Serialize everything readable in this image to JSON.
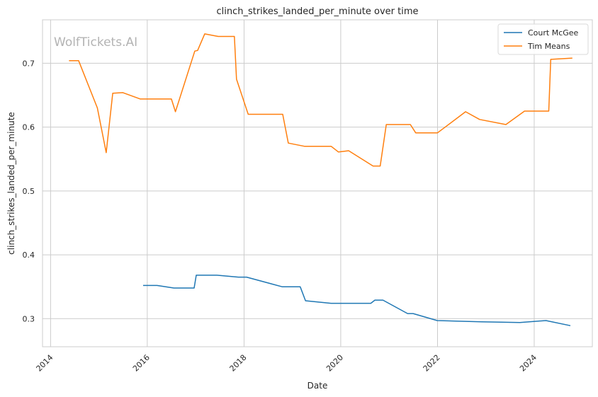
{
  "chart_data": {
    "type": "line",
    "title": "clinch_strikes_landed_per_minute over time",
    "xlabel": "Date",
    "ylabel": "clinch_strikes_landed_per_minute",
    "watermark": "WolfTickets.AI",
    "grid": true,
    "legend_position": "top-right",
    "x_ticks": [
      "2014",
      "2016",
      "2018",
      "2020",
      "2022",
      "2024"
    ],
    "y_ticks": [
      "0.3",
      "0.4",
      "0.5",
      "0.6",
      "0.7"
    ],
    "xlim": [
      "2013-11-01",
      "2025-03-15"
    ],
    "ylim": [
      0.256,
      0.768
    ],
    "series": [
      {
        "name": "Court McGee",
        "color": "#1f77b4",
        "points": [
          [
            "2015-12-01",
            0.352
          ],
          [
            "2016-03-15",
            0.352
          ],
          [
            "2016-07-20",
            0.348
          ],
          [
            "2016-12-20",
            0.348
          ],
          [
            "2017-01-05",
            0.368
          ],
          [
            "2017-06-10",
            0.368
          ],
          [
            "2017-11-20",
            0.365
          ],
          [
            "2018-01-20",
            0.365
          ],
          [
            "2018-10-15",
            0.35
          ],
          [
            "2019-03-01",
            0.35
          ],
          [
            "2019-04-10",
            0.328
          ],
          [
            "2019-10-20",
            0.324
          ],
          [
            "2020-05-01",
            0.324
          ],
          [
            "2020-08-15",
            0.324
          ],
          [
            "2020-09-15",
            0.329
          ],
          [
            "2020-11-15",
            0.329
          ],
          [
            "2021-05-20",
            0.308
          ],
          [
            "2021-07-01",
            0.308
          ],
          [
            "2021-12-30",
            0.297
          ],
          [
            "2022-12-01",
            0.295
          ],
          [
            "2023-09-15",
            0.294
          ],
          [
            "2024-03-30",
            0.297
          ],
          [
            "2024-09-30",
            0.289
          ]
        ]
      },
      {
        "name": "Tim Means",
        "color": "#ff7f0e",
        "points": [
          [
            "2014-05-20",
            0.704
          ],
          [
            "2014-08-01",
            0.704
          ],
          [
            "2014-12-20",
            0.63
          ],
          [
            "2015-02-25",
            0.56
          ],
          [
            "2015-04-15",
            0.653
          ],
          [
            "2015-07-01",
            0.654
          ],
          [
            "2015-11-10",
            0.644
          ],
          [
            "2016-07-01",
            0.644
          ],
          [
            "2016-08-01",
            0.624
          ],
          [
            "2016-12-25",
            0.719
          ],
          [
            "2017-01-15",
            0.72
          ],
          [
            "2017-03-10",
            0.746
          ],
          [
            "2017-06-20",
            0.742
          ],
          [
            "2017-10-20",
            0.742
          ],
          [
            "2017-11-05",
            0.675
          ],
          [
            "2018-02-01",
            0.62
          ],
          [
            "2018-10-20",
            0.62
          ],
          [
            "2018-12-01",
            0.575
          ],
          [
            "2019-04-01",
            0.57
          ],
          [
            "2019-10-20",
            0.57
          ],
          [
            "2019-12-15",
            0.561
          ],
          [
            "2020-03-01",
            0.563
          ],
          [
            "2020-09-01",
            0.539
          ],
          [
            "2020-10-25",
            0.539
          ],
          [
            "2020-12-10",
            0.604
          ],
          [
            "2021-06-10",
            0.604
          ],
          [
            "2021-07-20",
            0.591
          ],
          [
            "2022-01-01",
            0.591
          ],
          [
            "2022-08-01",
            0.624
          ],
          [
            "2022-11-15",
            0.612
          ],
          [
            "2023-06-01",
            0.604
          ],
          [
            "2023-10-20",
            0.625
          ],
          [
            "2024-04-20",
            0.625
          ],
          [
            "2024-05-05",
            0.706
          ],
          [
            "2024-10-15",
            0.708
          ]
        ]
      }
    ]
  }
}
